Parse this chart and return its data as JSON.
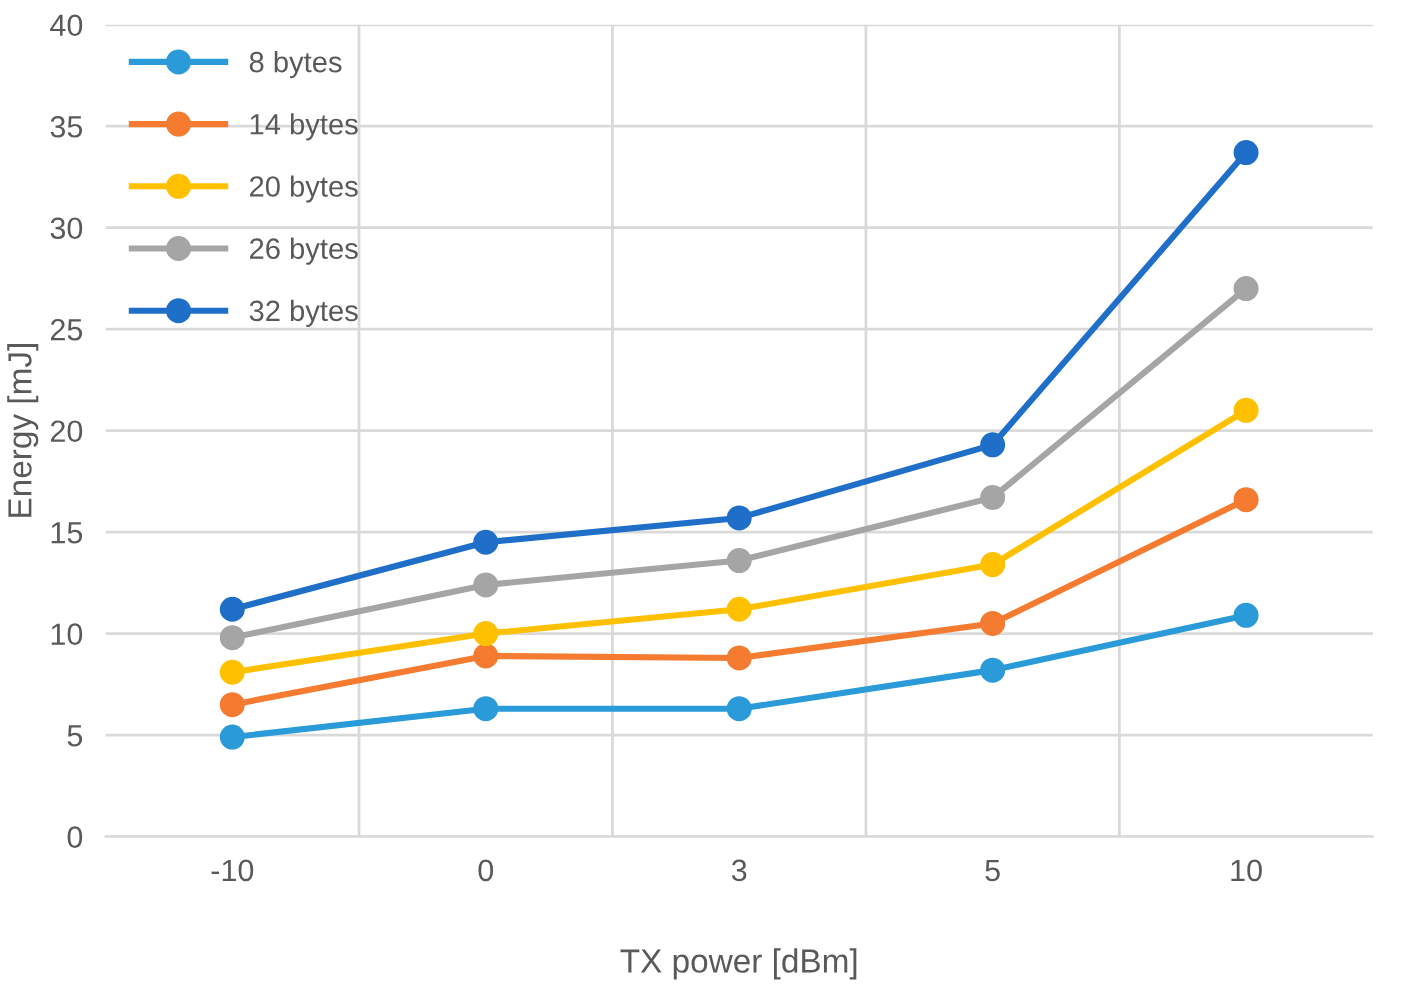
{
  "chart_data": {
    "type": "line",
    "xlabel": "TX power [dBm]",
    "ylabel": "Energy [mJ]",
    "categories": [
      "-10",
      "0",
      "3",
      "5",
      "10"
    ],
    "series": [
      {
        "name": "8 bytes",
        "color": "#2a9ad8",
        "values": [
          4.9,
          6.3,
          6.3,
          8.2,
          10.9
        ]
      },
      {
        "name": "14 bytes",
        "color": "#f47b30",
        "values": [
          6.5,
          8.9,
          8.8,
          10.5,
          16.6
        ]
      },
      {
        "name": "20 bytes",
        "color": "#ffc000",
        "values": [
          8.1,
          10.0,
          11.2,
          13.4,
          21.0
        ]
      },
      {
        "name": "26 bytes",
        "color": "#a5a5a5",
        "values": [
          9.8,
          12.4,
          13.6,
          16.7,
          27.0
        ]
      },
      {
        "name": "32 bytes",
        "color": "#1f6fc8",
        "values": [
          11.2,
          14.5,
          15.7,
          19.3,
          33.7
        ]
      }
    ],
    "ylim": [
      0,
      40
    ],
    "yticks": [
      0,
      5,
      10,
      15,
      20,
      25,
      30,
      35,
      40
    ],
    "grid": true,
    "legend": "top left",
    "marker": "circle",
    "line_style": "solid"
  }
}
